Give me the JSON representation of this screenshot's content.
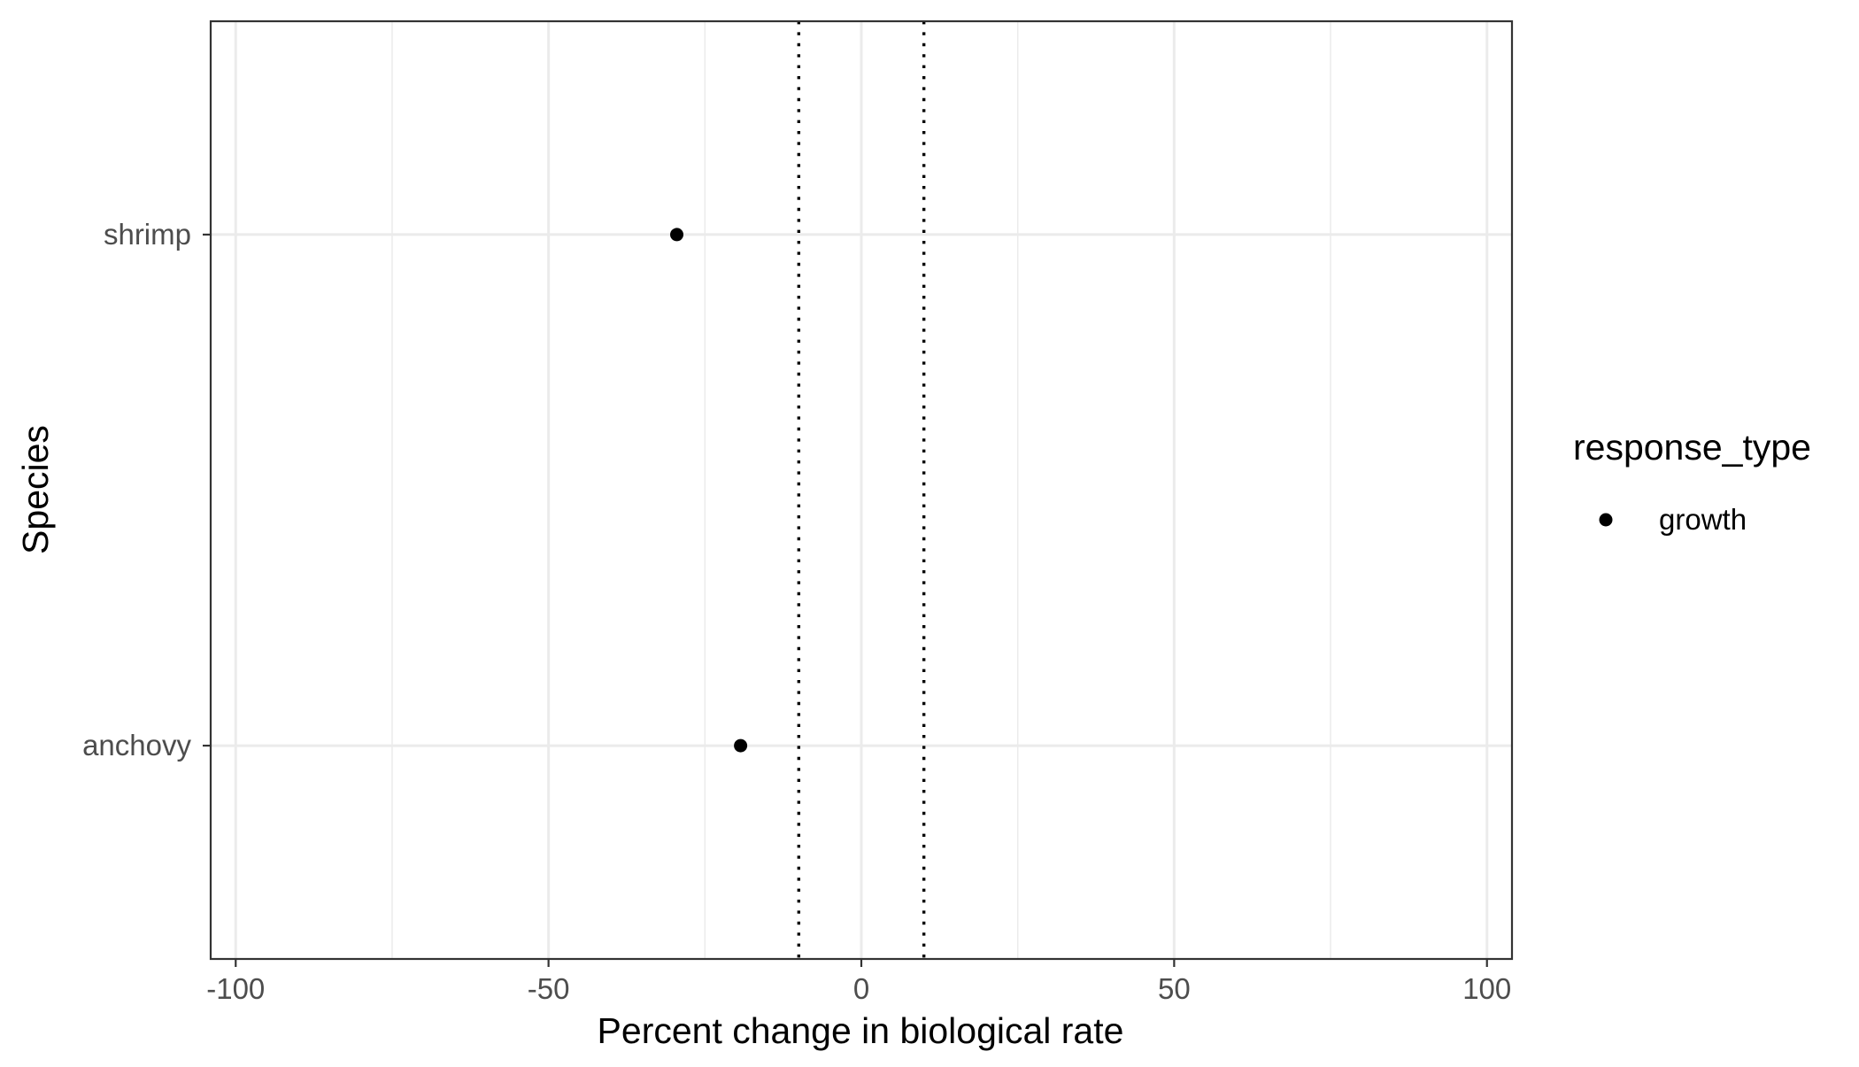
{
  "chart_data": {
    "type": "scatter",
    "xlabel": "Percent change in biological rate",
    "ylabel": "Species",
    "xlim": [
      -104,
      104
    ],
    "x_ticks": [
      -100,
      -50,
      0,
      50,
      100
    ],
    "x_minor_ticks": [
      -75,
      -25,
      25,
      75
    ],
    "categories": [
      "anchovy",
      "shrimp"
    ],
    "series": [
      {
        "name": "growth",
        "points": [
          {
            "category": "shrimp",
            "x": -29.5
          },
          {
            "category": "anchovy",
            "x": -19.3
          }
        ]
      }
    ],
    "reference_lines": [
      {
        "x": -10,
        "style": "dotted"
      },
      {
        "x": 10,
        "style": "dotted"
      }
    ],
    "grid": true,
    "legend": {
      "title": "response_type",
      "placement": "right",
      "items": [
        "growth"
      ]
    },
    "colors": {
      "point": "#000000",
      "grid": "#ebebeb",
      "panel_border": "#333333",
      "axis_text": "#4d4d4d",
      "title_text": "#000000"
    }
  }
}
